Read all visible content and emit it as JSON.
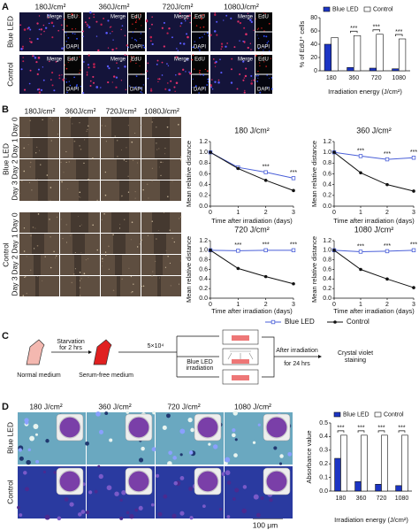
{
  "panel_labels": [
    "A",
    "B",
    "C",
    "D"
  ],
  "panel_a": {
    "columns": [
      "180J/cm²",
      "360J/cm²",
      "720J/cm²",
      "1080J/cm²"
    ],
    "rows": [
      "Blue LED",
      "Control"
    ],
    "channels": [
      "Merge",
      "EdU",
      "DAPI"
    ]
  },
  "panel_b": {
    "columns": [
      "180J/cm²",
      "360J/cm²",
      "720J/cm²",
      "1080J/cm²"
    ],
    "rows": [
      "Blue LED",
      "Control"
    ],
    "days": [
      "Day 0",
      "Day 1",
      "Day 2",
      "Day 3"
    ]
  },
  "panel_c": {
    "normal": "Normal medium",
    "starvation": [
      "Starvation",
      "for 2 hrs"
    ],
    "serum_free": "Serum-free medium",
    "seeding": "5×10⁴",
    "irradiation": [
      "Blue LED",
      "irradiation"
    ],
    "after": [
      "After irradiation",
      "for 24 hrs"
    ],
    "staining": [
      "Crystal violet",
      "staining"
    ]
  },
  "panel_d": {
    "columns": [
      "180 J/cm²",
      "360 J/cm²",
      "720 J/cm²",
      "1080 J/cm²"
    ],
    "rows": [
      "Blue LED",
      "Control"
    ],
    "scale_bar": "100 μm"
  },
  "chart_data": [
    {
      "type": "bar",
      "ylabel": "% of EdU⁺ cells",
      "xlabel": "Irradiation energy (J/cm²)",
      "categories": [
        "180",
        "360",
        "720",
        "1080"
      ],
      "series": [
        {
          "name": "Blue LED",
          "color": "#1c35c4",
          "values": [
            40,
            5,
            4,
            3
          ]
        },
        {
          "name": "Control",
          "color": "#ffffff",
          "values": [
            50,
            53,
            55,
            48
          ]
        }
      ],
      "significance": [
        null,
        "***",
        "***",
        "***"
      ],
      "ylim": [
        0,
        80
      ],
      "yticks": [
        0,
        20,
        40,
        60,
        80
      ],
      "legend": "top"
    },
    {
      "type": "line",
      "title": "180 J/cm²",
      "xlabel": "Time after irradiation (days)",
      "ylabel": "Mean relative distance",
      "x": [
        0,
        1,
        2,
        3
      ],
      "series": [
        {
          "name": "Blue LED",
          "color": "#4a5fd8",
          "values": [
            1,
            0.72,
            0.63,
            0.52
          ]
        },
        {
          "name": "Control",
          "color": "#111111",
          "values": [
            1,
            0.7,
            0.48,
            0.29
          ]
        }
      ],
      "significance": [
        null,
        null,
        "***",
        "***"
      ],
      "xlim": [
        0,
        3
      ],
      "ylim": [
        0,
        1.2
      ],
      "xticks": [
        0,
        1,
        2,
        3
      ],
      "yticks": [
        {
          "value": 0,
          "label": "0.0"
        },
        0.2,
        0.4,
        0.6,
        0.8,
        {
          "value": 1,
          "label": "1.0"
        },
        1.2
      ],
      "legend": "bottom"
    },
    {
      "type": "line",
      "title": "360 J/cm²",
      "xlabel": "Time after irradiation (days)",
      "ylabel": "Mean relative distance",
      "x": [
        0,
        1,
        2,
        3
      ],
      "series": [
        {
          "color": "#4a5fd8",
          "values": [
            1,
            0.93,
            0.87,
            0.9
          ]
        },
        {
          "color": "#111111",
          "values": [
            1,
            0.62,
            0.4,
            0.28
          ]
        }
      ],
      "significance": [
        null,
        "***",
        "***",
        "***"
      ],
      "xlim": [
        0,
        3
      ],
      "ylim": [
        0,
        1.2
      ],
      "xticks": [
        0,
        1,
        2,
        3
      ],
      "yticks": [
        {
          "value": 0,
          "label": "0.0"
        },
        0.2,
        0.4,
        0.6,
        0.8,
        {
          "value": 1,
          "label": "1.0"
        },
        1.2
      ]
    },
    {
      "type": "line",
      "title": "720 J/cm²",
      "xlabel": "Time after irradiation (days)",
      "ylabel": "Mean relative distance",
      "x": [
        0,
        1,
        2,
        3
      ],
      "series": [
        {
          "color": "#4a5fd8",
          "values": [
            1,
            0.99,
            1.0,
            1.0
          ]
        },
        {
          "color": "#111111",
          "values": [
            1,
            0.62,
            0.45,
            0.3
          ]
        }
      ],
      "significance": [
        null,
        "***",
        "***",
        "***"
      ],
      "xlim": [
        0,
        3
      ],
      "ylim": [
        0,
        1.2
      ],
      "xticks": [
        0,
        1,
        2,
        3
      ],
      "yticks": [
        {
          "value": 0,
          "label": "0.0"
        },
        0.2,
        0.4,
        0.6,
        0.8,
        {
          "value": 1,
          "label": "1.0"
        },
        1.2
      ]
    },
    {
      "type": "line",
      "title": "1080 J/cm²",
      "xlabel": "Time after irradiation (days)",
      "ylabel": "Mean relative distance",
      "x": [
        0,
        1,
        2,
        3
      ],
      "series": [
        {
          "color": "#4a5fd8",
          "values": [
            1,
            0.97,
            0.98,
            1.0
          ]
        },
        {
          "color": "#111111",
          "values": [
            1,
            0.6,
            0.4,
            0.22
          ]
        }
      ],
      "significance": [
        null,
        "***",
        "***",
        "***"
      ],
      "xlim": [
        0,
        3
      ],
      "ylim": [
        0,
        1.2
      ],
      "xticks": [
        0,
        1,
        2,
        3
      ],
      "yticks": [
        {
          "value": 0,
          "label": "0.0"
        },
        0.2,
        0.4,
        0.6,
        0.8,
        {
          "value": 1,
          "label": "1.0"
        },
        1.2
      ]
    },
    {
      "type": "bar",
      "ylabel": "Absorbance value",
      "xlabel": "Irradiation energy (J/cm²)",
      "categories": [
        "180",
        "360",
        "720",
        "1080"
      ],
      "series": [
        {
          "name": "Blue LED",
          "color": "#1c35c4",
          "values": [
            0.24,
            0.07,
            0.05,
            0.04
          ]
        },
        {
          "name": "Control",
          "color": "#ffffff",
          "values": [
            0.41,
            0.41,
            0.41,
            0.41
          ]
        }
      ],
      "significance": [
        "***",
        "***",
        "***",
        "***"
      ],
      "ylim": [
        0,
        0.5
      ],
      "yticks": [
        {
          "value": 0,
          "label": "0.0"
        },
        0.1,
        0.2,
        0.3,
        0.4,
        0.5
      ],
      "legend": "top"
    }
  ]
}
